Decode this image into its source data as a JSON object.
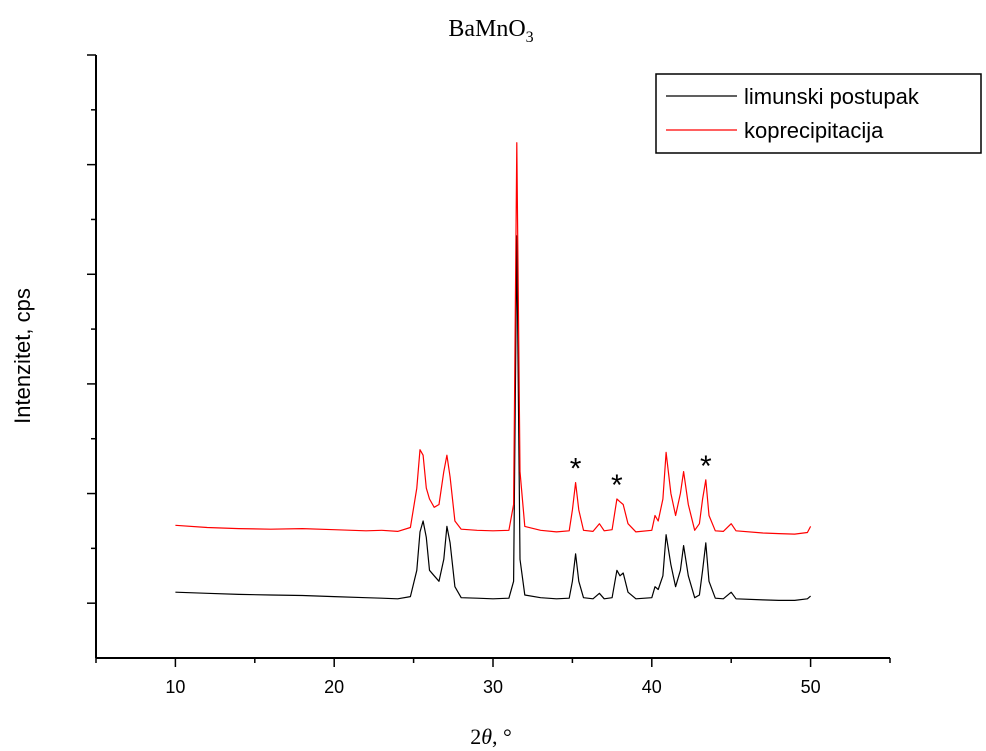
{
  "chart_data": {
    "type": "line",
    "title": "BaMnO",
    "title_subscript": "3",
    "xlabel_prefix": "2",
    "xlabel_var": "θ",
    "xlabel_suffix": ", °",
    "ylabel": "Intenzitet, cps",
    "xlim": [
      5,
      55
    ],
    "ylim": [
      -10,
      100
    ],
    "x_ticks": [
      10,
      20,
      30,
      40,
      50
    ],
    "grid": false,
    "legend_position": "top-right",
    "annotation": "*",
    "annotations_x": [
      35.2,
      37.8,
      43.4
    ],
    "series": [
      {
        "name": "limunski postupak",
        "color": "#000000",
        "points": [
          [
            10,
            2
          ],
          [
            12,
            1.8
          ],
          [
            14,
            1.6
          ],
          [
            16,
            1.5
          ],
          [
            18,
            1.4
          ],
          [
            20,
            1.2
          ],
          [
            22,
            1.0
          ],
          [
            23,
            0.9
          ],
          [
            24,
            0.8
          ],
          [
            24.8,
            1.2
          ],
          [
            25.2,
            6
          ],
          [
            25.4,
            13
          ],
          [
            25.6,
            15
          ],
          [
            25.8,
            12
          ],
          [
            26.0,
            6
          ],
          [
            26.3,
            5
          ],
          [
            26.6,
            4
          ],
          [
            26.9,
            8
          ],
          [
            27.1,
            14
          ],
          [
            27.3,
            11
          ],
          [
            27.6,
            3
          ],
          [
            28,
            1.0
          ],
          [
            29,
            0.9
          ],
          [
            30,
            0.8
          ],
          [
            31,
            0.9
          ],
          [
            31.3,
            4
          ],
          [
            31.5,
            67
          ],
          [
            31.7,
            8
          ],
          [
            32,
            1.5
          ],
          [
            33,
            1.0
          ],
          [
            34,
            0.8
          ],
          [
            34.8,
            0.9
          ],
          [
            35.0,
            4
          ],
          [
            35.2,
            9
          ],
          [
            35.4,
            4
          ],
          [
            35.7,
            1.0
          ],
          [
            36.3,
            0.8
          ],
          [
            36.7,
            1.8
          ],
          [
            37.0,
            0.8
          ],
          [
            37.5,
            1.0
          ],
          [
            37.8,
            6
          ],
          [
            38.0,
            5
          ],
          [
            38.2,
            5.5
          ],
          [
            38.5,
            2
          ],
          [
            39,
            0.8
          ],
          [
            40,
            1.0
          ],
          [
            40.2,
            3
          ],
          [
            40.4,
            2.5
          ],
          [
            40.7,
            5
          ],
          [
            40.9,
            12.5
          ],
          [
            41.2,
            7
          ],
          [
            41.5,
            3
          ],
          [
            41.8,
            6
          ],
          [
            42.0,
            10.5
          ],
          [
            42.3,
            5
          ],
          [
            42.7,
            1.0
          ],
          [
            43.0,
            1.5
          ],
          [
            43.2,
            6
          ],
          [
            43.4,
            11
          ],
          [
            43.6,
            4
          ],
          [
            44,
            0.9
          ],
          [
            44.5,
            0.8
          ],
          [
            45.0,
            2
          ],
          [
            45.3,
            0.8
          ],
          [
            47,
            0.6
          ],
          [
            48,
            0.5
          ],
          [
            49,
            0.5
          ],
          [
            49.8,
            0.8
          ],
          [
            50,
            1.3
          ]
        ]
      },
      {
        "name": "koprecipitacija",
        "color": "#ff0000",
        "points": [
          [
            10,
            14.2
          ],
          [
            12,
            13.8
          ],
          [
            14,
            13.6
          ],
          [
            16,
            13.5
          ],
          [
            18,
            13.6
          ],
          [
            20,
            13.4
          ],
          [
            22,
            13.2
          ],
          [
            23,
            13.3
          ],
          [
            24,
            13.1
          ],
          [
            24.8,
            13.8
          ],
          [
            25.2,
            21
          ],
          [
            25.4,
            28
          ],
          [
            25.6,
            27
          ],
          [
            25.8,
            21
          ],
          [
            26.0,
            19
          ],
          [
            26.3,
            17.5
          ],
          [
            26.6,
            18
          ],
          [
            26.9,
            24
          ],
          [
            27.1,
            27
          ],
          [
            27.3,
            23
          ],
          [
            27.6,
            15
          ],
          [
            28,
            13.5
          ],
          [
            29,
            13.3
          ],
          [
            30,
            13.2
          ],
          [
            31,
            13.3
          ],
          [
            31.3,
            18
          ],
          [
            31.5,
            84
          ],
          [
            31.7,
            24
          ],
          [
            32,
            14
          ],
          [
            33,
            13.3
          ],
          [
            34,
            13.0
          ],
          [
            34.8,
            13.2
          ],
          [
            35.0,
            17
          ],
          [
            35.2,
            22
          ],
          [
            35.4,
            17
          ],
          [
            35.7,
            13.3
          ],
          [
            36.3,
            13.1
          ],
          [
            36.7,
            14.5
          ],
          [
            37.0,
            13.2
          ],
          [
            37.5,
            13.4
          ],
          [
            37.8,
            19
          ],
          [
            38.0,
            18.5
          ],
          [
            38.2,
            18
          ],
          [
            38.5,
            14.5
          ],
          [
            39,
            13.0
          ],
          [
            40,
            13.3
          ],
          [
            40.2,
            16
          ],
          [
            40.4,
            15
          ],
          [
            40.7,
            19
          ],
          [
            40.9,
            27.5
          ],
          [
            41.2,
            20
          ],
          [
            41.5,
            16
          ],
          [
            41.8,
            20
          ],
          [
            42.0,
            24
          ],
          [
            42.3,
            18
          ],
          [
            42.7,
            13.3
          ],
          [
            43.0,
            14.5
          ],
          [
            43.2,
            19
          ],
          [
            43.4,
            22.5
          ],
          [
            43.6,
            16
          ],
          [
            44,
            13.2
          ],
          [
            44.5,
            13.1
          ],
          [
            45.0,
            14.5
          ],
          [
            45.3,
            13.2
          ],
          [
            47,
            12.8
          ],
          [
            48,
            12.7
          ],
          [
            49,
            12.6
          ],
          [
            49.8,
            12.9
          ],
          [
            50,
            14
          ]
        ]
      }
    ]
  }
}
